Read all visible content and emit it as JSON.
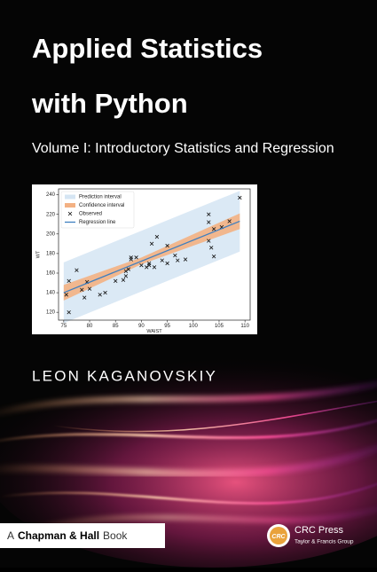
{
  "title_lines": [
    "Applied Statistics",
    "with Python"
  ],
  "subtitle": "Volume I: Introductory Statistics and Regression",
  "author": "LEON KAGANOVSKIY",
  "series_imprint": {
    "prefix": "A",
    "name": "Chapman & Hall",
    "suffix": "Book"
  },
  "publisher": {
    "logo": "CRC",
    "name": "CRC Press",
    "group": "Taylor & Francis Group"
  },
  "chart_data": {
    "type": "scatter",
    "xlabel": "WAIST",
    "ylabel": "WT",
    "xlim": [
      74,
      111
    ],
    "ylim": [
      112,
      246
    ],
    "xticks": [
      75,
      80,
      85,
      90,
      95,
      100,
      105,
      110
    ],
    "yticks": [
      120,
      140,
      160,
      180,
      200,
      220,
      240
    ],
    "legend": "upper left",
    "bands": [
      {
        "name": "Prediction interval",
        "color": "#d5e5f3",
        "x": [
          75,
          109
        ],
        "lower": [
          109,
          182
        ],
        "upper": [
          171,
          244
        ]
      },
      {
        "name": "Confidence interval",
        "color": "#f3b183",
        "x": [
          75,
          90,
          109
        ],
        "lower": [
          132,
          169,
          205
        ],
        "upper": [
          148,
          176,
          221
        ]
      }
    ],
    "series": [
      {
        "name": "Observed",
        "color": "#111111",
        "x": [
          75.5,
          76,
          76,
          77.5,
          78.5,
          79,
          79.5,
          80,
          82,
          83,
          85,
          86.5,
          87,
          87,
          87.5,
          88,
          88,
          89,
          90,
          91,
          91.5,
          91.5,
          92,
          93,
          92.5,
          94,
          95,
          95,
          96.5,
          97,
          98.5,
          103,
          103,
          103,
          103.5,
          104,
          104,
          105.5,
          107,
          109
        ],
        "values": [
          138,
          152,
          120,
          163,
          143,
          135,
          151,
          144,
          138,
          140,
          152,
          153,
          157,
          162,
          164,
          176,
          174,
          176,
          168,
          166,
          170,
          168,
          190,
          197,
          166,
          173,
          170,
          188,
          178,
          173,
          174,
          220,
          212,
          193,
          186,
          205,
          177,
          207,
          213,
          237
        ]
      },
      {
        "name": "Regression line",
        "color": "#3f7fbf",
        "x": [
          75,
          109
        ],
        "values": [
          140,
          213
        ]
      }
    ]
  }
}
